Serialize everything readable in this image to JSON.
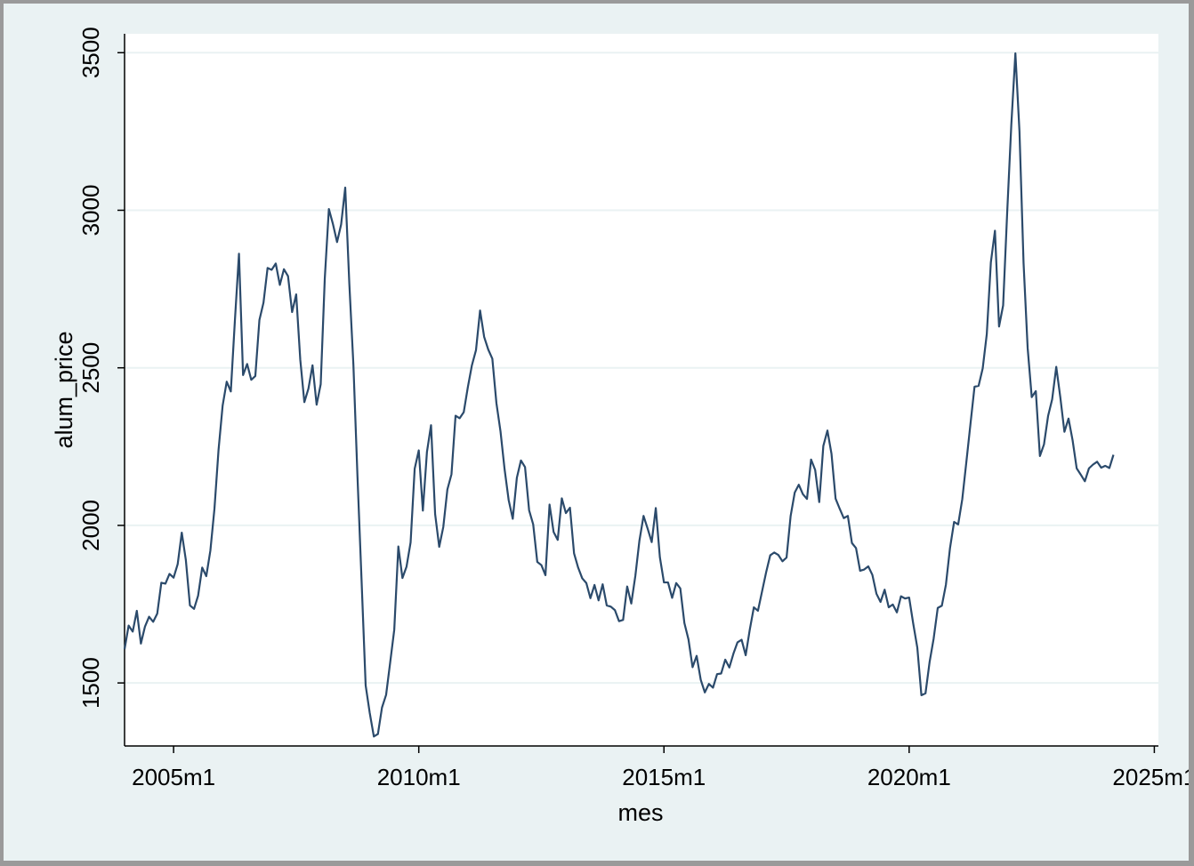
{
  "chart_data": {
    "type": "line",
    "xlabel": "mes",
    "ylabel": "alum_price",
    "ylim": [
      1300,
      3560
    ],
    "yticks": [
      1500,
      2000,
      2500,
      3000,
      3500
    ],
    "xlim": [
      "2004-01",
      "2025-02"
    ],
    "xticks": [
      {
        "date": "2005-01",
        "label": "2005m1"
      },
      {
        "date": "2010-01",
        "label": "2010m1"
      },
      {
        "date": "2015-01",
        "label": "2015m1"
      },
      {
        "date": "2020-01",
        "label": "2020m1"
      },
      {
        "date": "2025-01",
        "label": "2025m1"
      }
    ],
    "grid": true,
    "colors": {
      "line": "#2b4a6b",
      "plot_bg": "#ffffff",
      "outer_bg": "#eaf2f3",
      "grid": "#eaf2f3"
    },
    "series": [
      {
        "dates_start": "2004-01",
        "values": [
          1607,
          1682,
          1663,
          1729,
          1625,
          1679,
          1710,
          1694,
          1720,
          1818,
          1815,
          1846,
          1834,
          1877,
          1977,
          1890,
          1746,
          1735,
          1777,
          1866,
          1839,
          1920,
          2053,
          2240,
          2380,
          2456,
          2425,
          2650,
          2862,
          2477,
          2512,
          2462,
          2474,
          2652,
          2707,
          2817,
          2811,
          2831,
          2763,
          2813,
          2791,
          2677,
          2733,
          2526,
          2391,
          2434,
          2508,
          2383,
          2448,
          2784,
          3004,
          2956,
          2899,
          2955,
          3072,
          2768,
          2510,
          2155,
          1825,
          1492,
          1405,
          1330,
          1338,
          1422,
          1462,
          1565,
          1669,
          1933,
          1833,
          1869,
          1946,
          2180,
          2238,
          2047,
          2233,
          2318,
          2036,
          1932,
          1995,
          2114,
          2162,
          2348,
          2340,
          2359,
          2438,
          2508,
          2556,
          2682,
          2598,
          2558,
          2529,
          2388,
          2298,
          2178,
          2080,
          2021,
          2151,
          2206,
          2185,
          2048,
          2003,
          1884,
          1874,
          1842,
          2066,
          1979,
          1954,
          2086,
          2039,
          2056,
          1911,
          1866,
          1832,
          1817,
          1769,
          1811,
          1762,
          1813,
          1746,
          1742,
          1731,
          1696,
          1700,
          1806,
          1752,
          1840,
          1952,
          2030,
          1990,
          1947,
          2055,
          1899,
          1819,
          1819,
          1770,
          1817,
          1800,
          1690,
          1638,
          1550,
          1586,
          1510,
          1470,
          1497,
          1485,
          1528,
          1530,
          1574,
          1549,
          1593,
          1629,
          1637,
          1588,
          1669,
          1740,
          1729,
          1790,
          1851,
          1905,
          1914,
          1906,
          1886,
          1898,
          2030,
          2104,
          2129,
          2099,
          2084,
          2209,
          2176,
          2074,
          2252,
          2301,
          2227,
          2085,
          2053,
          2023,
          2030,
          1944,
          1928,
          1856,
          1860,
          1870,
          1843,
          1783,
          1757,
          1796,
          1740,
          1749,
          1724,
          1775,
          1768,
          1771,
          1688,
          1612,
          1461,
          1467,
          1566,
          1641,
          1738,
          1745,
          1812,
          1928,
          2011,
          2003,
          2083,
          2201,
          2321,
          2440,
          2443,
          2498,
          2607,
          2835,
          2935,
          2631,
          2698,
          2995,
          3271,
          3498,
          3250,
          2833,
          2563,
          2407,
          2426,
          2220,
          2257,
          2347,
          2400,
          2503,
          2406,
          2297,
          2339,
          2270,
          2181,
          2161,
          2140,
          2181,
          2193,
          2202,
          2183,
          2189,
          2182,
          2224
        ]
      }
    ]
  }
}
